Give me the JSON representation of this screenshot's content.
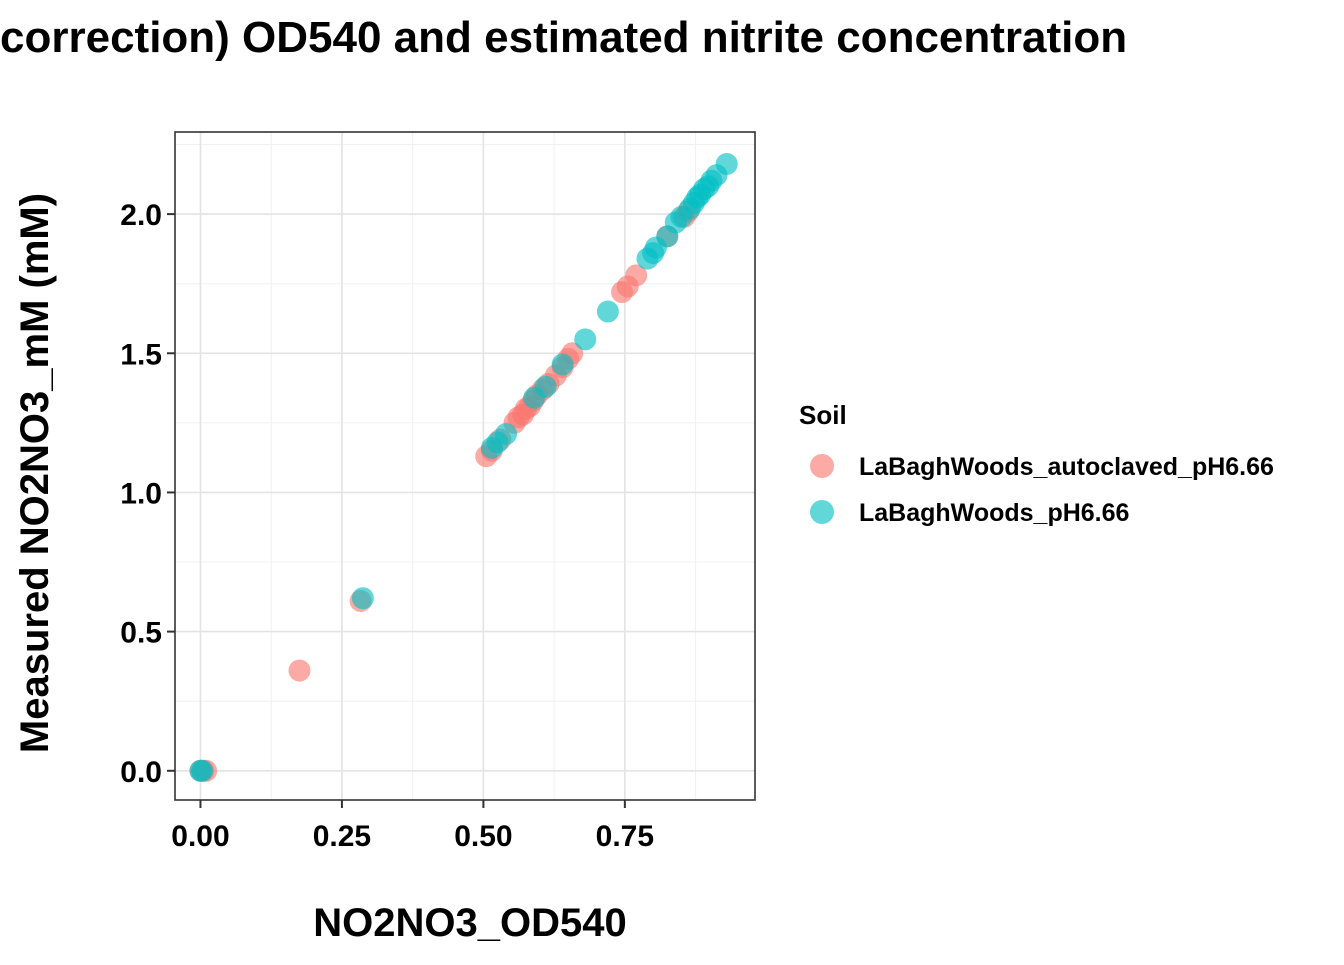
{
  "chart_data": {
    "type": "scatter",
    "title": "correction) OD540 and estimated nitrite concentration",
    "xlabel": "NO2NO3_OD540",
    "ylabel": "Measured NO2NO3_mM (mM)",
    "xlim": [
      -0.045,
      0.98
    ],
    "ylim": [
      -0.105,
      2.295
    ],
    "x_ticks": [
      0.0,
      0.25,
      0.5,
      0.75
    ],
    "x_tick_labels": [
      "0.00",
      "0.25",
      "0.50",
      "0.75"
    ],
    "y_ticks": [
      0.0,
      0.5,
      1.0,
      1.5,
      2.0
    ],
    "y_tick_labels": [
      "0.0",
      "0.5",
      "1.0",
      "1.5",
      "2.0"
    ],
    "grid": true,
    "legend": {
      "title": "Soil",
      "placement": "right"
    },
    "series": [
      {
        "name": "LaBaghWoods_autoclaved_pH6.66",
        "color": "#F8766D",
        "points": [
          [
            0.005,
            0.0
          ],
          [
            0.01,
            0.0
          ],
          [
            0.0,
            0.0
          ],
          [
            0.175,
            0.36
          ],
          [
            0.283,
            0.61
          ],
          [
            0.505,
            1.13
          ],
          [
            0.515,
            1.15
          ],
          [
            0.53,
            1.19
          ],
          [
            0.555,
            1.25
          ],
          [
            0.562,
            1.27
          ],
          [
            0.57,
            1.28
          ],
          [
            0.575,
            1.3
          ],
          [
            0.582,
            1.31
          ],
          [
            0.588,
            1.33
          ],
          [
            0.595,
            1.35
          ],
          [
            0.605,
            1.37
          ],
          [
            0.615,
            1.39
          ],
          [
            0.628,
            1.42
          ],
          [
            0.64,
            1.45
          ],
          [
            0.65,
            1.48
          ],
          [
            0.657,
            1.5
          ],
          [
            0.745,
            1.72
          ],
          [
            0.755,
            1.74
          ],
          [
            0.77,
            1.78
          ],
          [
            0.825,
            1.92
          ],
          [
            0.855,
            1.99
          ],
          [
            0.862,
            2.01
          ]
        ]
      },
      {
        "name": "LaBaghWoods_pH6.66",
        "color": "#00BFC4",
        "points": [
          [
            0.0,
            0.0
          ],
          [
            0.003,
            0.0
          ],
          [
            0.287,
            0.62
          ],
          [
            0.515,
            1.16
          ],
          [
            0.525,
            1.18
          ],
          [
            0.54,
            1.21
          ],
          [
            0.59,
            1.34
          ],
          [
            0.61,
            1.38
          ],
          [
            0.64,
            1.46
          ],
          [
            0.68,
            1.55
          ],
          [
            0.72,
            1.65
          ],
          [
            0.79,
            1.84
          ],
          [
            0.8,
            1.86
          ],
          [
            0.805,
            1.88
          ],
          [
            0.825,
            1.92
          ],
          [
            0.84,
            1.97
          ],
          [
            0.85,
            1.99
          ],
          [
            0.865,
            2.02
          ],
          [
            0.872,
            2.04
          ],
          [
            0.878,
            2.06
          ],
          [
            0.883,
            2.07
          ],
          [
            0.89,
            2.09
          ],
          [
            0.897,
            2.1
          ],
          [
            0.903,
            2.12
          ],
          [
            0.912,
            2.14
          ],
          [
            0.93,
            2.18
          ]
        ]
      }
    ]
  }
}
